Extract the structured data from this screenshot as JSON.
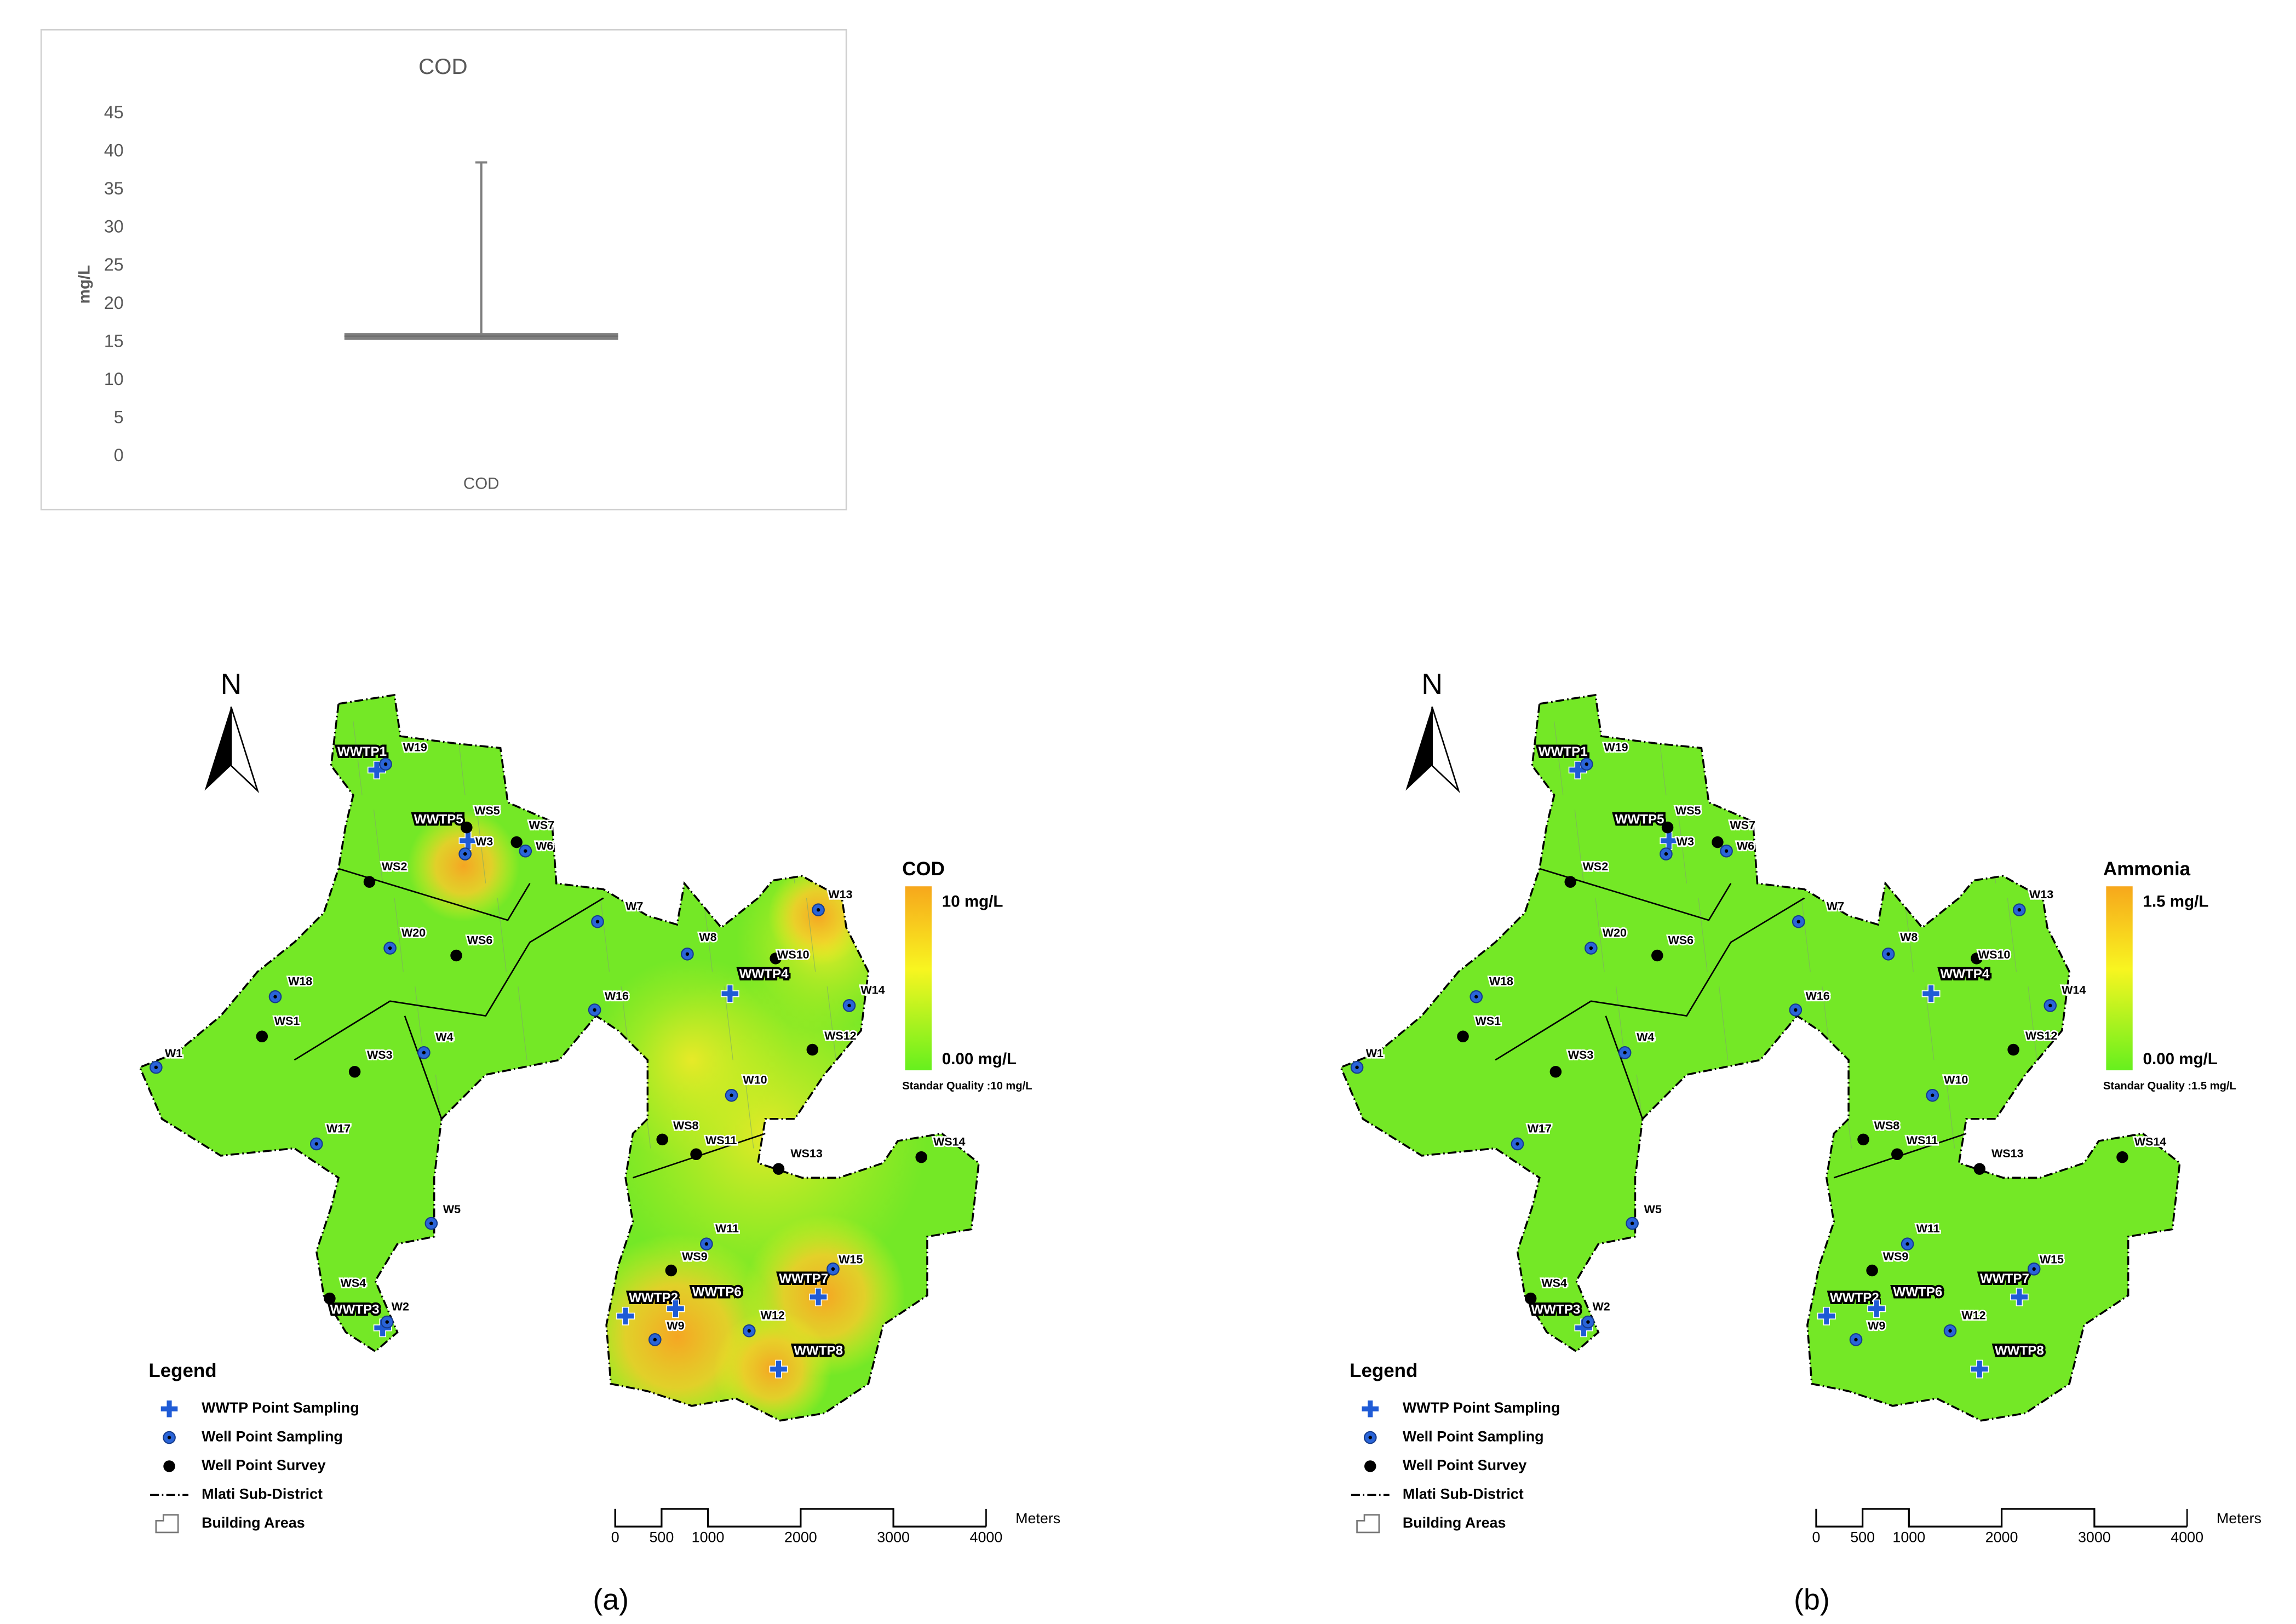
{
  "chart_data": {
    "type": "box",
    "title": "COD",
    "ylabel": "mg/L",
    "categories": [
      "COD"
    ],
    "min": [
      15.3
    ],
    "q1": [
      15.3
    ],
    "median": [
      15.8
    ],
    "q3": [
      16.2
    ],
    "max": [
      38.6
    ],
    "color": "#7f7f7f",
    "ylim": [
      0,
      45
    ],
    "yticks": [
      0,
      5,
      10,
      15,
      20,
      25,
      30,
      35,
      40,
      45
    ],
    "grid": false
  },
  "maps": [
    {
      "variable": "COD",
      "max_label": "10 mg/L",
      "min_label": "0.00 mg/L",
      "standard": "Standar Quality :10 mg/L",
      "caption": "(a)",
      "hotspots": true
    },
    {
      "variable": "Ammonia",
      "max_label": "1.5 mg/L",
      "min_label": "0.00 mg/L",
      "standard": "Standar Quality :1.5 mg/L",
      "caption": "(b)",
      "hotspots": false
    }
  ],
  "map_common": {
    "north": "N",
    "legend_title": "Legend",
    "legend_items": [
      {
        "label": "WWTP Point Sampling",
        "points": [
          "WWTP1",
          "WWTP5",
          "WWTP3",
          "WWTP4",
          "WWTP7",
          "WWTP2",
          "WWTP6",
          "WWTP8"
        ]
      },
      {
        "label": "Well Point Sampling",
        "points": [
          "W19",
          "W3",
          "W6",
          "W20",
          "W7",
          "W18",
          "W1",
          "W4",
          "W17",
          "W5",
          "W2",
          "W8",
          "W16",
          "W13",
          "W14",
          "W10",
          "W11",
          "W9",
          "W12",
          "W15"
        ]
      },
      {
        "label": "Well Point Survey",
        "points": [
          "WS5",
          "WS7",
          "WS2",
          "WS6",
          "WS1",
          "WS3",
          "WS4",
          "WS10",
          "WS12",
          "WS8",
          "WS11",
          "WS13",
          "WS14",
          "WS9"
        ]
      },
      {
        "label": "Mlati Sub-District"
      },
      {
        "label": "Building Areas"
      }
    ],
    "scale_labels": [
      0,
      500,
      1000,
      2000,
      3000,
      4000
    ],
    "scale_unit": "Meters"
  }
}
